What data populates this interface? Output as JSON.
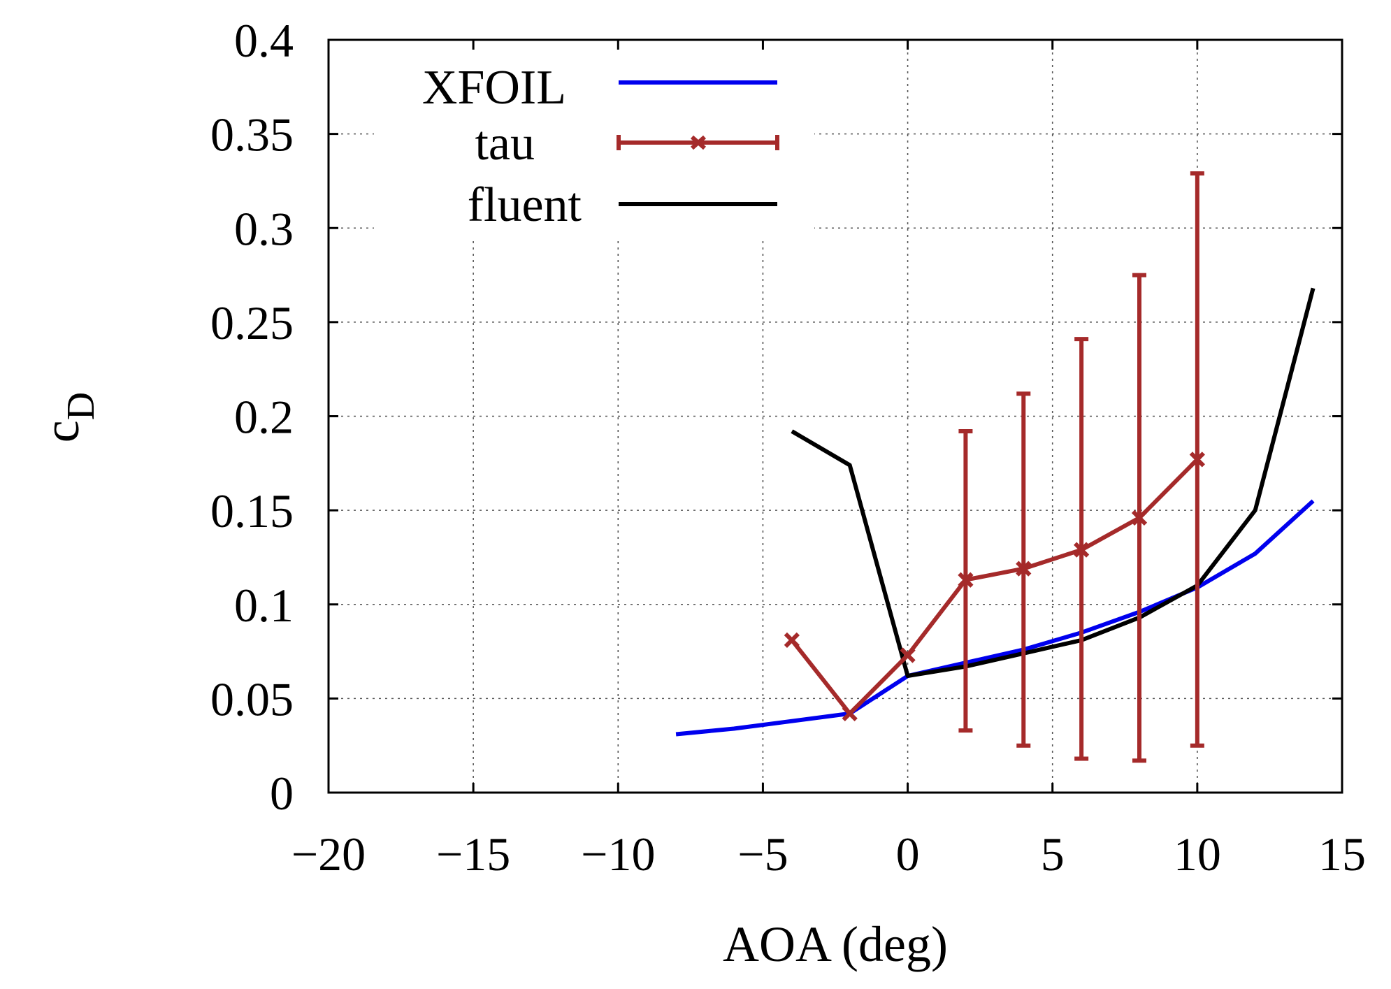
{
  "chart_data": {
    "type": "line",
    "title": "",
    "xlabel": "AOA (deg)",
    "ylabel_main": "c",
    "ylabel_sub": "D",
    "xlim": [
      -20,
      15
    ],
    "ylim": [
      0,
      0.4
    ],
    "xticks": [
      -20,
      -15,
      -10,
      -5,
      0,
      5,
      10,
      15
    ],
    "xtick_labels": [
      "−20",
      "−15",
      "−10",
      "−5",
      "0",
      "5",
      "10",
      "15"
    ],
    "yticks": [
      0,
      0.05,
      0.1,
      0.15,
      0.2,
      0.25,
      0.3,
      0.35,
      0.4
    ],
    "ytick_labels": [
      "0",
      "0.05",
      "0.1",
      "0.15",
      "0.2",
      "0.25",
      "0.3",
      "0.35",
      "0.4"
    ],
    "grid": true,
    "legend_position": "top-left",
    "series": [
      {
        "name": "XFOIL",
        "color": "#0000ee",
        "marker": false,
        "x": [
          -8,
          -6,
          -4,
          -2,
          0,
          2,
          4,
          6,
          8,
          10,
          12,
          14
        ],
        "y": [
          0.031,
          0.034,
          0.038,
          0.042,
          0.062,
          0.069,
          0.076,
          0.085,
          0.096,
          0.109,
          0.127,
          0.155
        ]
      },
      {
        "name": "tau",
        "color": "#a52a2a",
        "marker": true,
        "x": [
          -4,
          -2,
          0,
          2,
          4,
          6,
          8,
          10
        ],
        "y": [
          0.081,
          0.042,
          0.073,
          0.113,
          0.119,
          0.129,
          0.146,
          0.177
        ],
        "error_x": [
          2,
          4,
          6,
          8,
          10
        ],
        "error_low": [
          0.033,
          0.025,
          0.018,
          0.017,
          0.025
        ],
        "error_high": [
          0.192,
          0.212,
          0.241,
          0.275,
          0.329
        ]
      },
      {
        "name": "fluent",
        "color": "#000000",
        "marker": false,
        "x": [
          -4,
          -2,
          0,
          2,
          4,
          6,
          8,
          10,
          12,
          14
        ],
        "y": [
          0.192,
          0.174,
          0.062,
          0.067,
          0.074,
          0.081,
          0.093,
          0.11,
          0.15,
          0.268
        ]
      }
    ]
  }
}
